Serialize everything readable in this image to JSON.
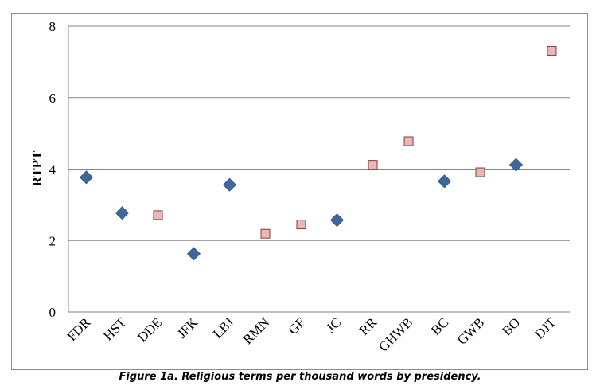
{
  "chart_data": {
    "type": "scatter",
    "categories": [
      "FDR",
      "HST",
      "DDE",
      "JFK",
      "LBJ",
      "RMN",
      "GF",
      "JC",
      "RR",
      "GHWB",
      "BC",
      "GWB",
      "BO",
      "DJT"
    ],
    "series": [
      {
        "marker": "diamond",
        "color": "#3f679a",
        "points": [
          {
            "x": "FDR",
            "y": 3.77
          },
          {
            "x": "HST",
            "y": 2.77
          },
          {
            "x": "JFK",
            "y": 1.63
          },
          {
            "x": "LBJ",
            "y": 3.56
          },
          {
            "x": "JC",
            "y": 2.57
          },
          {
            "x": "BC",
            "y": 3.66
          },
          {
            "x": "BO",
            "y": 4.12
          }
        ]
      },
      {
        "marker": "square",
        "color": "#e6b9b8",
        "border": "#8e3b3b",
        "points": [
          {
            "x": "DDE",
            "y": 2.71
          },
          {
            "x": "RMN",
            "y": 2.19
          },
          {
            "x": "GF",
            "y": 2.45
          },
          {
            "x": "RR",
            "y": 4.12
          },
          {
            "x": "GHWB",
            "y": 4.78
          },
          {
            "x": "GWB",
            "y": 3.91
          },
          {
            "x": "DJT",
            "y": 7.31
          }
        ]
      }
    ],
    "ylabel": "RTPT",
    "xlabel": "",
    "ylim": [
      0,
      8
    ],
    "yticks": [
      0,
      2,
      4,
      6,
      8
    ],
    "grid": true,
    "legend": "none"
  },
  "caption": "Figure 1a. Religious terms per thousand words by presidency."
}
